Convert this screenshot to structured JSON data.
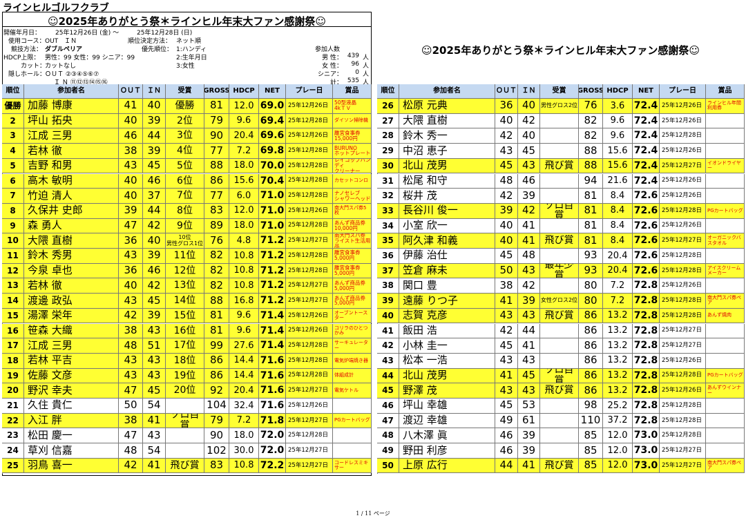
{
  "header": {
    "club": "ラインヒルゴルフクラブ",
    "title": "☺2025年ありがとう祭＊ラインヒル年末大ファン感謝祭☺",
    "right_title": "☺2025年ありがとう祭＊ラインヒル年末大ファン感謝祭☺"
  },
  "info": [
    "開催年月日：",
    "25年12月26日 (金) ～",
    "25年12月28日 (日)",
    "使用コース：",
    "OUT　ＩＮ",
    "順位決定方法：",
    "ネット順",
    "競技方法：",
    "ダブルペリア",
    "優先順位：",
    "1:ハンディ",
    "HDCP上限：",
    "男性：99 女性：99 シニア：99",
    "2:生年月日",
    "カット：",
    "カットなし",
    "3:女性",
    "隠しホール：",
    "ＯＵＴ ②③④⑤⑥⑦",
    "Ｉ Ｎ ⑪⑫⑬⑭⑮⑯"
  ],
  "participants": {
    "label": "参加人数",
    "rows": [
      [
        "男 性：",
        "439",
        "人"
      ],
      [
        "女 性：",
        "96",
        "人"
      ],
      [
        "シニア：",
        "0",
        "人"
      ],
      [
        "計：",
        "535",
        "人"
      ]
    ]
  },
  "table": {
    "columns": [
      "順位",
      "参加者名",
      "ＯＵＴ",
      "ＩＮ",
      "受賞",
      "GROSS",
      "HDCP",
      "NET",
      "プレー日",
      "賞品"
    ],
    "rows": [
      [
        "優勝",
        "加藤 博康",
        "41",
        "40",
        "優勝",
        "81",
        "12.0",
        "69.0",
        "25年12月26日",
        "50型液晶\n4kＴＶ"
      ],
      [
        "2",
        "坪山 拓央",
        "40",
        "39",
        "2位",
        "79",
        "9.6",
        "69.4",
        "25年12月28日",
        "ダイソン掃除機"
      ],
      [
        "3",
        "江成 三男",
        "46",
        "44",
        "3位",
        "90",
        "20.4",
        "69.6",
        "25年12月26日",
        "離宮食事券\n15,000円"
      ],
      [
        "4",
        "若林 徹",
        "38",
        "39",
        "4位",
        "77",
        "7.2",
        "69.8",
        "25年12月28日",
        "BURUNO\nホットプレート"
      ],
      [
        "5",
        "吉野 和男",
        "43",
        "45",
        "5位",
        "88",
        "18.0",
        "70.0",
        "25年12月28日",
        "レイコップハンディ\nクリーナー"
      ],
      [
        "6",
        "高木 敏明",
        "40",
        "46",
        "6位",
        "86",
        "15.6",
        "70.4",
        "25年12月28日",
        "カセットコンロ"
      ],
      [
        "7",
        "竹迫 清人",
        "40",
        "37",
        "7位",
        "77",
        "6.0",
        "71.0",
        "25年12月28日",
        "ナノセレブ\nシャワーヘッド"
      ],
      [
        "8",
        "久保井 史郎",
        "39",
        "44",
        "8位",
        "83",
        "12.0",
        "71.0",
        "25年12月26日",
        "南大門スパ券5枚"
      ],
      [
        "9",
        "森 勇人",
        "47",
        "42",
        "9位",
        "89",
        "18.0",
        "71.0",
        "25年12月28日",
        "あんず商品券\n10,000円"
      ],
      [
        "10",
        "大隈 直樹",
        "36",
        "40",
        "10位\n男性グロス1位",
        "76",
        "4.8",
        "71.2",
        "25年12月27日",
        "南大門スパ券\nライスト生活用品"
      ],
      [
        "11",
        "鈴木 秀男",
        "43",
        "39",
        "11位",
        "82",
        "10.8",
        "71.2",
        "25年12月28日",
        "離宮食事券\n5,000円"
      ],
      [
        "12",
        "今泉 卓也",
        "36",
        "46",
        "12位",
        "82",
        "10.8",
        "71.2",
        "25年12月28日",
        "離宮食事券\n5,000円"
      ],
      [
        "13",
        "若林 徹",
        "40",
        "42",
        "13位",
        "82",
        "10.8",
        "71.2",
        "25年12月27日",
        "あんず商品券\n5,000円"
      ],
      [
        "14",
        "渡邊 政弘",
        "43",
        "45",
        "14位",
        "88",
        "16.8",
        "71.2",
        "25年12月27日",
        "あんず商品券\n5,000円"
      ],
      [
        "15",
        "湯澤 栄年",
        "42",
        "39",
        "15位",
        "81",
        "9.6",
        "71.4",
        "25年12月26日",
        "オーブントースター"
      ],
      [
        "16",
        "笹森 大織",
        "38",
        "43",
        "16位",
        "81",
        "9.6",
        "71.4",
        "25年12月26日",
        "コリラのひとつかみ"
      ],
      [
        "17",
        "江成 三男",
        "48",
        "51",
        "17位",
        "99",
        "27.6",
        "71.4",
        "25年12月28日",
        "サーキュレーター"
      ],
      [
        "18",
        "若林 平吉",
        "43",
        "43",
        "18位",
        "86",
        "14.4",
        "71.6",
        "25年12月28日",
        "電気炉端焼き器"
      ],
      [
        "19",
        "佐藤 文彦",
        "43",
        "43",
        "19位",
        "86",
        "14.4",
        "71.6",
        "25年12月28日",
        "体組成計"
      ],
      [
        "20",
        "野沢 幸夫",
        "47",
        "45",
        "20位",
        "92",
        "20.4",
        "71.6",
        "25年12月27日",
        "電気ケトル"
      ],
      [
        "21",
        "久住 貴仁",
        "50",
        "54",
        null,
        "104",
        "32.4",
        "71.6",
        "25年12月26日",
        null
      ],
      [
        "22",
        "入江 胖",
        "38",
        "41",
        "ゾロ目賞",
        "79",
        "7.2",
        "71.8",
        "25年12月27日",
        "PGカートバッグ"
      ],
      [
        "23",
        "松田 慶一",
        "47",
        "43",
        null,
        "90",
        "18.0",
        "72.0",
        "25年12月28日",
        null
      ],
      [
        "24",
        "草刈 信嘉",
        "48",
        "54",
        null,
        "102",
        "30.0",
        "72.0",
        "25年12月27日",
        null
      ],
      [
        "25",
        "羽鳥 喜一",
        "42",
        "41",
        "飛び賞",
        "83",
        "10.8",
        "72.2",
        "25年12月27日",
        "コードレスミキサー"
      ],
      [
        "26",
        "松原 元典",
        "36",
        "40",
        "男性グロス2位",
        "76",
        "3.6",
        "72.4",
        "25年12月26日",
        "ラインヒル年間利用券"
      ],
      [
        "27",
        "大隈 直樹",
        "40",
        "42",
        null,
        "82",
        "9.6",
        "72.4",
        "25年12月26日",
        null
      ],
      [
        "28",
        "鈴木 秀一",
        "42",
        "40",
        null,
        "82",
        "9.6",
        "72.4",
        "25年12月28日",
        null
      ],
      [
        "29",
        "中沼 恵子",
        "43",
        "45",
        null,
        "88",
        "15.6",
        "72.4",
        "25年12月26日",
        null
      ],
      [
        "30",
        "北山 茂男",
        "45",
        "43",
        "飛び賞",
        "88",
        "15.6",
        "72.4",
        "25年12月27日",
        "イオンドライヤー"
      ],
      [
        "31",
        "松尾 和守",
        "48",
        "46",
        null,
        "94",
        "21.6",
        "72.4",
        "25年12月26日",
        null
      ],
      [
        "32",
        "桜井 茂",
        "42",
        "39",
        null,
        "81",
        "8.4",
        "72.6",
        "25年12月26日",
        null
      ],
      [
        "33",
        "長谷川 俊一",
        "39",
        "42",
        "ゾロ目賞",
        "81",
        "8.4",
        "72.6",
        "25年12月28日",
        "PGカートバッグ"
      ],
      [
        "34",
        "小室 欣一",
        "40",
        "41",
        null,
        "81",
        "8.4",
        "72.6",
        "25年12月26日",
        null
      ],
      [
        "35",
        "阿久津 和義",
        "40",
        "41",
        "飛び賞",
        "81",
        "8.4",
        "72.6",
        "25年12月27日",
        "オーガニックバスタオル"
      ],
      [
        "36",
        "伊藤 治仕",
        "45",
        "48",
        null,
        "93",
        "20.4",
        "72.6",
        "25年12月28日",
        null
      ],
      [
        "37",
        "笠倉 麻未",
        "50",
        "43",
        "最年少賞",
        "93",
        "20.4",
        "72.6",
        "25年12月28日",
        "アイスクリームメーカー"
      ],
      [
        "38",
        "関口 豊",
        "38",
        "42",
        null,
        "80",
        "7.2",
        "72.8",
        "25年12月26日",
        null
      ],
      [
        "39",
        "遠藤 りつ子",
        "41",
        "39",
        "女性グロス2位",
        "80",
        "7.2",
        "72.8",
        "25年12月28日",
        "南大門スパ券ペア"
      ],
      [
        "40",
        "志賀 克彦",
        "43",
        "43",
        "飛び賞",
        "86",
        "13.2",
        "72.8",
        "25年12月28日",
        "あんず焼肉"
      ],
      [
        "41",
        "飯田 浩",
        "42",
        "44",
        null,
        "86",
        "13.2",
        "72.8",
        "25年12月27日",
        null
      ],
      [
        "42",
        "小林 圭一",
        "45",
        "41",
        null,
        "86",
        "13.2",
        "72.8",
        "25年12月27日",
        null
      ],
      [
        "43",
        "松本 一浩",
        "43",
        "43",
        null,
        "86",
        "13.2",
        "72.8",
        "25年12月26日",
        null
      ],
      [
        "44",
        "北山 茂男",
        "41",
        "45",
        "ゾロ目賞",
        "86",
        "13.2",
        "72.8",
        "25年12月28日",
        "PGカートバッグ"
      ],
      [
        "45",
        "野澤 茂",
        "43",
        "43",
        "飛び賞",
        "86",
        "13.2",
        "72.8",
        "25年12月26日",
        "あんずウインナー"
      ],
      [
        "46",
        "坪山 幸雄",
        "45",
        "53",
        null,
        "98",
        "25.2",
        "72.8",
        "25年12月28日",
        null
      ],
      [
        "47",
        "渡辺 幸雄",
        "49",
        "61",
        null,
        "110",
        "37.2",
        "72.8",
        "25年12月28日",
        null
      ],
      [
        "48",
        "八木澤 眞",
        "46",
        "39",
        null,
        "85",
        "12.0",
        "73.0",
        "25年12月28日",
        null
      ],
      [
        "49",
        "野田 利彦",
        "46",
        "39",
        null,
        "85",
        "12.0",
        "73.0",
        "25年12月27日",
        null
      ],
      [
        "50",
        "上原 広行",
        "44",
        "41",
        "飛び賞",
        "85",
        "12.0",
        "73.0",
        "25年12月27日",
        "南大門スパ券ペア"
      ]
    ]
  },
  "footer": "1 / 11 ページ"
}
